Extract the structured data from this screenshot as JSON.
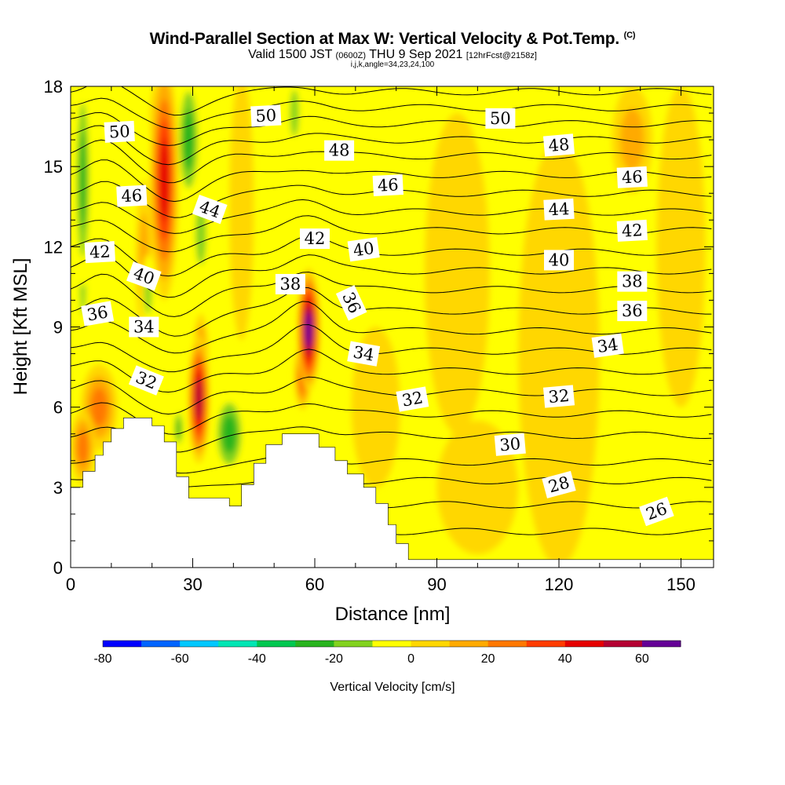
{
  "title": {
    "main": "Wind-Parallel Section at Max W: Vertical Velocity & Pot.Temp.",
    "copyright": "(C)",
    "valid_a": "Valid 1500 JST",
    "valid_utc": "(0600Z)",
    "valid_b": "THU 9 Sep 2021",
    "forecast": "[12hrFcst@2158z]",
    "params": "i,j,k,angle=34,23,24,100"
  },
  "chart_data": {
    "type": "heatmap",
    "xlabel": "Distance [nm]",
    "ylabel": "Height [Kft MSL]",
    "xlim": [
      0,
      158
    ],
    "ylim": [
      0,
      18
    ],
    "x_ticks": [
      0,
      30,
      60,
      90,
      120,
      150
    ],
    "y_ticks": [
      0,
      3,
      6,
      9,
      12,
      15,
      18
    ],
    "colorbar": {
      "title": "Vertical Velocity [cm/s]",
      "ticks": [
        -80,
        -60,
        -40,
        -20,
        0,
        20,
        40,
        60
      ],
      "bins": [
        -80,
        -70,
        -60,
        -50,
        -40,
        -30,
        -20,
        -10,
        0,
        10,
        20,
        30,
        40,
        50,
        60,
        70
      ],
      "colors": [
        "#0000ff",
        "#0064ff",
        "#00c8ff",
        "#00e6b4",
        "#00c850",
        "#28b41e",
        "#82d21e",
        "#ffff00",
        "#ffd700",
        "#ffaa00",
        "#ff7800",
        "#ff3c00",
        "#e60000",
        "#b40032",
        "#640096"
      ]
    },
    "terrain_profile": [
      [
        0,
        3.0
      ],
      [
        3,
        3.0
      ],
      [
        3,
        3.6
      ],
      [
        6,
        3.6
      ],
      [
        6,
        4.2
      ],
      [
        8,
        4.2
      ],
      [
        8,
        4.7
      ],
      [
        10,
        4.7
      ],
      [
        10,
        5.2
      ],
      [
        13,
        5.2
      ],
      [
        13,
        5.6
      ],
      [
        20,
        5.6
      ],
      [
        20,
        5.3
      ],
      [
        23,
        5.3
      ],
      [
        23,
        4.7
      ],
      [
        26,
        4.7
      ],
      [
        26,
        3.4
      ],
      [
        29,
        3.4
      ],
      [
        29,
        2.6
      ],
      [
        39,
        2.6
      ],
      [
        39,
        2.3
      ],
      [
        42,
        2.3
      ],
      [
        42,
        3.1
      ],
      [
        45,
        3.1
      ],
      [
        45,
        3.9
      ],
      [
        48,
        3.9
      ],
      [
        48,
        4.6
      ],
      [
        52,
        4.6
      ],
      [
        52,
        5.0
      ],
      [
        61,
        5.0
      ],
      [
        61,
        4.5
      ],
      [
        65,
        4.5
      ],
      [
        65,
        4.0
      ],
      [
        68,
        4.0
      ],
      [
        68,
        3.5
      ],
      [
        72,
        3.5
      ],
      [
        72,
        3.0
      ],
      [
        75,
        3.0
      ],
      [
        75,
        2.4
      ],
      [
        78,
        2.4
      ],
      [
        78,
        1.6
      ],
      [
        80,
        1.6
      ],
      [
        80,
        0.9
      ],
      [
        83,
        0.9
      ],
      [
        83,
        0.3
      ],
      [
        158,
        0.3
      ]
    ],
    "w_features": [
      {
        "x": 23,
        "y": 14.5,
        "rx": 3.5,
        "ry": 4.5,
        "w": 50
      },
      {
        "x": 22,
        "y": 16.8,
        "rx": 2.5,
        "ry": 1.5,
        "w": 40
      },
      {
        "x": 18,
        "y": 11.5,
        "rx": 2.0,
        "ry": 3.0,
        "w": 15
      },
      {
        "x": 31.5,
        "y": 6.3,
        "rx": 2.6,
        "ry": 2.4,
        "w": 60
      },
      {
        "x": 32,
        "y": 8.0,
        "rx": 1.8,
        "ry": 1.5,
        "w": 30
      },
      {
        "x": 58.5,
        "y": 8.9,
        "rx": 2.8,
        "ry": 2.3,
        "w": 70
      },
      {
        "x": 57,
        "y": 7.2,
        "rx": 2.0,
        "ry": 1.3,
        "w": 40
      },
      {
        "x": 7,
        "y": 6.0,
        "rx": 4.5,
        "ry": 1.6,
        "w": 25
      },
      {
        "x": 3,
        "y": 4.5,
        "rx": 3.0,
        "ry": 1.4,
        "w": 25
      },
      {
        "x": 29,
        "y": 16.0,
        "rx": 3.0,
        "ry": 2.5,
        "w": -30
      },
      {
        "x": 32,
        "y": 12.5,
        "rx": 2.2,
        "ry": 2.0,
        "w": -20
      },
      {
        "x": 3,
        "y": 14.5,
        "rx": 2.0,
        "ry": 4.0,
        "w": -30
      },
      {
        "x": 3,
        "y": 10.5,
        "rx": 1.2,
        "ry": 1.8,
        "w": -20
      },
      {
        "x": 19,
        "y": 10.3,
        "rx": 1.5,
        "ry": 1.4,
        "w": -20
      },
      {
        "x": 39,
        "y": 5.0,
        "rx": 4.0,
        "ry": 1.6,
        "w": -25
      },
      {
        "x": 55,
        "y": 17.0,
        "rx": 1.8,
        "ry": 1.5,
        "w": -20
      },
      {
        "x": 26.5,
        "y": 5.2,
        "rx": 1.2,
        "ry": 0.8,
        "w": -30
      },
      {
        "x": 42,
        "y": 13.5,
        "rx": 3.0,
        "ry": 5.0,
        "w": 10
      },
      {
        "x": 95,
        "y": 11.0,
        "rx": 8.0,
        "ry": 6.0,
        "w": 10
      },
      {
        "x": 120,
        "y": 8.0,
        "rx": 10.0,
        "ry": 8.0,
        "w": 8
      },
      {
        "x": 150,
        "y": 12.0,
        "rx": 6.0,
        "ry": 6.0,
        "w": 10
      },
      {
        "x": 100,
        "y": 3.0,
        "rx": 10.0,
        "ry": 2.5,
        "w": 10
      },
      {
        "x": 138,
        "y": 16.0,
        "rx": 5.0,
        "ry": 2.0,
        "w": 20
      },
      {
        "x": 75,
        "y": 6.0,
        "rx": 6.0,
        "ry": 3.0,
        "w": 8
      }
    ],
    "theta_contours": {
      "base_heights": [
        0.15,
        1.35,
        2.35,
        3.25,
        3.95,
        4.95,
        5.75,
        6.55,
        7.35,
        8.1,
        8.85,
        9.6,
        10.4,
        11.1,
        11.8,
        12.6,
        13.3,
        14.0,
        14.7,
        15.4,
        16.0,
        16.6,
        17.2,
        17.8
      ],
      "labels": [
        {
          "text": "50",
          "x": 2.0,
          "y": 16.3,
          "angle": -3
        },
        {
          "text": "46",
          "x": 2.5,
          "y": 13.9,
          "angle": -3
        },
        {
          "text": "42",
          "x": 1.2,
          "y": 11.8,
          "angle": -3
        },
        {
          "text": "40",
          "x": 3.0,
          "y": 10.9,
          "angle": 20
        },
        {
          "text": "36",
          "x": 1.1,
          "y": 9.5,
          "angle": -10
        },
        {
          "text": "34",
          "x": 3.0,
          "y": 9.0,
          "angle": 0
        },
        {
          "text": "32",
          "x": 3.1,
          "y": 7.0,
          "angle": 22
        },
        {
          "text": "50",
          "x": 8.0,
          "y": 16.9,
          "angle": -3
        },
        {
          "text": "48",
          "x": 11.0,
          "y": 15.6,
          "angle": 0
        },
        {
          "text": "44",
          "x": 5.7,
          "y": 13.4,
          "angle": 20
        },
        {
          "text": "46",
          "x": 13.0,
          "y": 14.3,
          "angle": -3
        },
        {
          "text": "42",
          "x": 10.0,
          "y": 12.3,
          "angle": 0
        },
        {
          "text": "40",
          "x": 12.0,
          "y": 11.9,
          "angle": -8
        },
        {
          "text": "38",
          "x": 9.0,
          "y": 10.6,
          "angle": 0
        },
        {
          "text": "36",
          "x": 11.5,
          "y": 9.9,
          "angle": 65
        },
        {
          "text": "34",
          "x": 12.0,
          "y": 8.0,
          "angle": 10
        },
        {
          "text": "32",
          "x": 14.0,
          "y": 6.3,
          "angle": -10
        },
        {
          "text": "50",
          "x": 17.6,
          "y": 16.8,
          "angle": 0
        },
        {
          "text": "48",
          "x": 20.0,
          "y": 15.8,
          "angle": -5
        },
        {
          "text": "46",
          "x": 23.0,
          "y": 14.6,
          "angle": -3
        },
        {
          "text": "44",
          "x": 20.0,
          "y": 13.4,
          "angle": -3
        },
        {
          "text": "42",
          "x": 23.0,
          "y": 12.6,
          "angle": -3
        },
        {
          "text": "40",
          "x": 20.0,
          "y": 11.5,
          "angle": 0
        },
        {
          "text": "38",
          "x": 23.0,
          "y": 10.7,
          "angle": 0
        },
        {
          "text": "36",
          "x": 23.0,
          "y": 9.6,
          "angle": 0
        },
        {
          "text": "34",
          "x": 22.0,
          "y": 8.3,
          "angle": -8
        },
        {
          "text": "32",
          "x": 20.0,
          "y": 6.4,
          "angle": -5
        },
        {
          "text": "30",
          "x": 18.0,
          "y": 4.6,
          "angle": -5
        },
        {
          "text": "28",
          "x": 20.0,
          "y": 3.1,
          "angle": -15
        },
        {
          "text": "26",
          "x": 24.0,
          "y": 2.1,
          "angle": -20
        }
      ]
    }
  }
}
